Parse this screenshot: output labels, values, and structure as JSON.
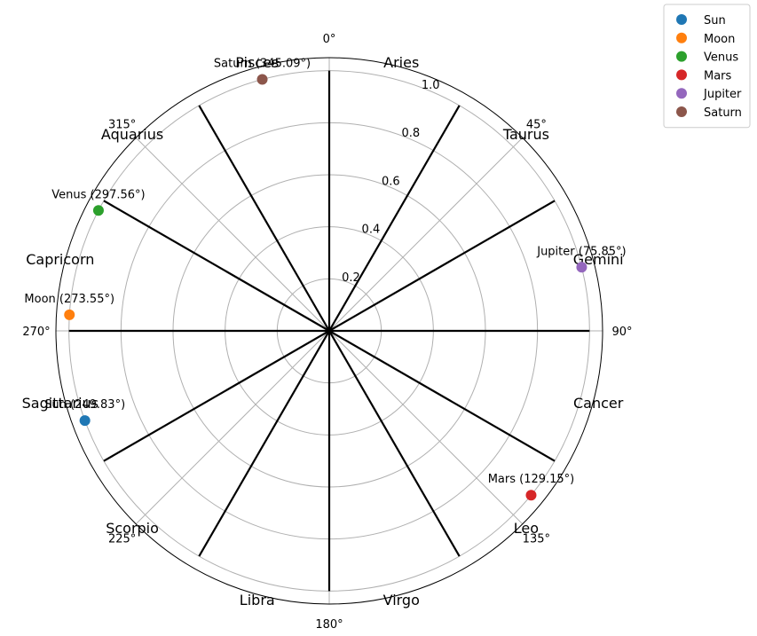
{
  "chart_data": {
    "type": "scatter",
    "projection": "polar",
    "theta_direction": "clockwise",
    "theta_zero": "top",
    "rlim": [
      0,
      1.05
    ],
    "grid": true,
    "radial_ticks": [
      "0.2",
      "0.4",
      "0.6",
      "0.8",
      "1.0"
    ],
    "radial_tick_values": [
      0.2,
      0.4,
      0.6,
      0.8,
      1.0
    ],
    "angular_ticks": [
      "0°",
      "45°",
      "90°",
      "135°",
      "180°",
      "225°",
      "270°",
      "315°"
    ],
    "angular_tick_values": [
      0,
      45,
      90,
      135,
      180,
      225,
      270,
      315
    ],
    "house_dividers_deg": [
      0,
      30,
      60,
      90,
      120,
      150,
      180,
      210,
      240,
      270,
      300,
      330
    ],
    "house_divider_radius": 1.0,
    "zodiac_signs": [
      {
        "name": "Aries",
        "angle": 15
      },
      {
        "name": "Taurus",
        "angle": 45
      },
      {
        "name": "Gemini",
        "angle": 75
      },
      {
        "name": "Cancer",
        "angle": 105
      },
      {
        "name": "Leo",
        "angle": 135
      },
      {
        "name": "Virgo",
        "angle": 165
      },
      {
        "name": "Libra",
        "angle": 195
      },
      {
        "name": "Scorpio",
        "angle": 225
      },
      {
        "name": "Sagittarius",
        "angle": 255
      },
      {
        "name": "Capricorn",
        "angle": 285
      },
      {
        "name": "Aquarius",
        "angle": 315
      },
      {
        "name": "Pisces",
        "angle": 345
      }
    ],
    "zodiac_label_radius": 1.07,
    "series": [
      {
        "name": "Sun",
        "color": "#1f77b4",
        "theta": 249.83,
        "r": 1.0,
        "label": "Sun (249.83°)"
      },
      {
        "name": "Moon",
        "color": "#ff7f0e",
        "theta": 273.55,
        "r": 1.0,
        "label": "Moon (273.55°)"
      },
      {
        "name": "Venus",
        "color": "#2ca02c",
        "theta": 297.56,
        "r": 1.0,
        "label": "Venus (297.56°)"
      },
      {
        "name": "Mars",
        "color": "#d62728",
        "theta": 129.15,
        "r": 1.0,
        "label": "Mars (129.15°)"
      },
      {
        "name": "Jupiter",
        "color": "#9467bd",
        "theta": 75.85,
        "r": 1.0,
        "label": "Jupiter (75.85°)"
      },
      {
        "name": "Saturn",
        "color": "#8c564b",
        "theta": 345.09,
        "r": 1.0,
        "label": "Saturn (345.09°)"
      }
    ],
    "legend_placement": "top-right outside"
  }
}
